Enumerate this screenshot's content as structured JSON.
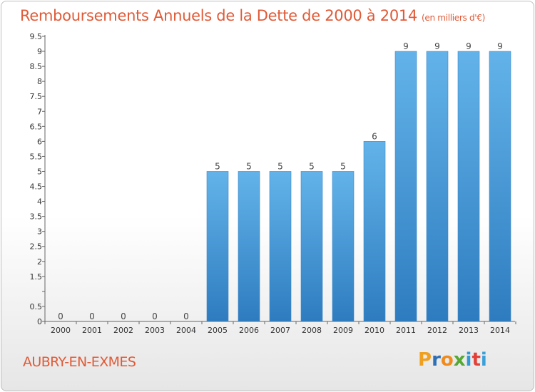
{
  "header": {
    "title": "Remboursements Annuels de la Dette de 2000 à 2014",
    "unit": "(en milliers d'€)"
  },
  "footer": {
    "commune": "AUBRY-EN-EXMES",
    "logo_letters": [
      "P",
      "r",
      "o",
      "x",
      "i",
      "t",
      "i"
    ],
    "logo_colors": [
      "#f0a020",
      "#2f6fb5",
      "#f08a1c",
      "#55a832",
      "#2f9ad6",
      "#e2413a",
      "#3aa0d8"
    ]
  },
  "chart_data": {
    "type": "bar",
    "title": "Remboursements Annuels de la Dette de 2000 à 2014",
    "categories": [
      "2000",
      "2001",
      "2002",
      "2003",
      "2004",
      "2005",
      "2006",
      "2007",
      "2008",
      "2009",
      "2010",
      "2011",
      "2012",
      "2013",
      "2014"
    ],
    "values": [
      0,
      0,
      0,
      0,
      0,
      5,
      5,
      5,
      5,
      5,
      6,
      9,
      9,
      9,
      9
    ],
    "data_labels": [
      "0",
      "0",
      "0",
      "0",
      "0",
      "5",
      "5",
      "5",
      "5",
      "5",
      "6",
      "9",
      "9",
      "9",
      "9"
    ],
    "yticks": [
      0,
      0.5,
      1,
      1.5,
      2,
      2.5,
      3,
      3.5,
      4,
      4.5,
      5,
      5.5,
      6,
      6.5,
      7,
      7.5,
      8,
      8.5,
      9,
      9.5
    ],
    "ytick_labels": [
      "0",
      "0.5",
      "",
      "1.5",
      "2",
      "2.5",
      "3",
      "3.5",
      "4",
      "4.5",
      "5",
      "5.5",
      "6",
      "6.5",
      "7",
      "7.5",
      "8",
      "8.5",
      "9",
      "9.5"
    ],
    "ylim": [
      0,
      9.5
    ],
    "grid": false,
    "colors": {
      "bar_light": "#63b3ea",
      "bar_dark": "#2e7cbf",
      "label": "#e05a37"
    }
  }
}
